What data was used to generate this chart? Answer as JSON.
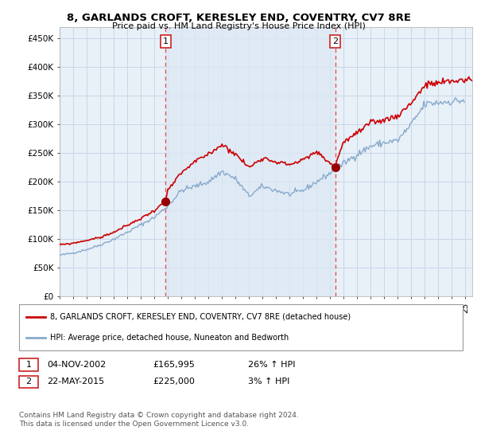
{
  "title": "8, GARLANDS CROFT, KERESLEY END, COVENTRY, CV7 8RE",
  "subtitle": "Price paid vs. HM Land Registry's House Price Index (HPI)",
  "ylabel_ticks": [
    "£0",
    "£50K",
    "£100K",
    "£150K",
    "£200K",
    "£250K",
    "£300K",
    "£350K",
    "£400K",
    "£450K"
  ],
  "ytick_values": [
    0,
    50000,
    100000,
    150000,
    200000,
    250000,
    300000,
    350000,
    400000,
    450000
  ],
  "ylim": [
    0,
    470000
  ],
  "xlim_start": 1995.0,
  "xlim_end": 2025.5,
  "sale1_x": 2002.84,
  "sale1_y": 165995,
  "sale1_label": "1",
  "sale1_date": "04-NOV-2002",
  "sale1_price": "£165,995",
  "sale1_hpi": "26% ↑ HPI",
  "sale2_x": 2015.38,
  "sale2_y": 225000,
  "sale2_label": "2",
  "sale2_date": "22-MAY-2015",
  "sale2_price": "£225,000",
  "sale2_hpi": "3% ↑ HPI",
  "legend_line1": "8, GARLANDS CROFT, KERESLEY END, COVENTRY, CV7 8RE (detached house)",
  "legend_line2": "HPI: Average price, detached house, Nuneaton and Bedworth",
  "footer": "Contains HM Land Registry data © Crown copyright and database right 2024.\nThis data is licensed under the Open Government Licence v3.0.",
  "line_color_red": "#cc0000",
  "line_color_blue": "#88aacc",
  "background_color": "#e8f0f8",
  "background_color_shaded": "#dce8f5",
  "grid_color": "#c8d8e8",
  "sale_marker_color": "#990000",
  "vline_color": "#ee4444"
}
